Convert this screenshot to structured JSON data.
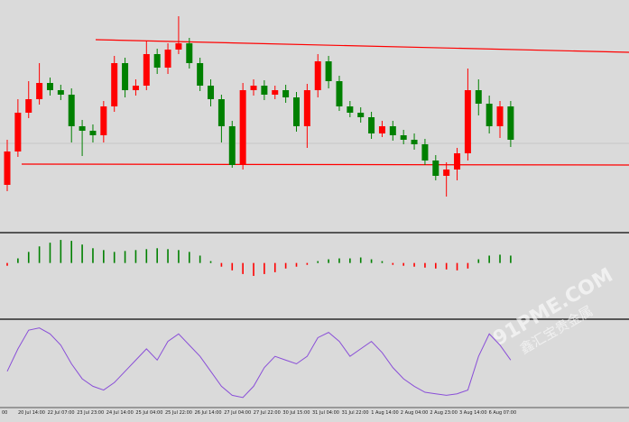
{
  "chart_data": [
    {
      "type": "candlestick",
      "up_color": "#ff0000",
      "down_color": "#008000",
      "ylim": [
        0,
        258
      ],
      "open": [
        53,
        90,
        133,
        148,
        166,
        158,
        153,
        118,
        113,
        108,
        140,
        188,
        158,
        163,
        198,
        183,
        203,
        210,
        188,
        163,
        148,
        118,
        75,
        158,
        163,
        153,
        158,
        150,
        118,
        158,
        190,
        168,
        140,
        133,
        128,
        110,
        118,
        108,
        103,
        98,
        80,
        63,
        70,
        88,
        158,
        143,
        118,
        140
      ],
      "high": [
        103,
        148,
        168,
        188,
        172,
        164,
        160,
        125,
        120,
        146,
        196,
        194,
        170,
        213,
        204,
        210,
        240,
        216,
        194,
        170,
        153,
        124,
        166,
        170,
        169,
        163,
        164,
        156,
        165,
        198,
        196,
        174,
        146,
        139,
        134,
        124,
        124,
        114,
        110,
        104,
        86,
        78,
        94,
        182,
        170,
        152,
        146,
        146
      ],
      "low": [
        46,
        84,
        127,
        142,
        152,
        147,
        100,
        85,
        100,
        100,
        134,
        150,
        152,
        158,
        176,
        176,
        198,
        182,
        157,
        140,
        100,
        72,
        70,
        152,
        147,
        148,
        144,
        112,
        94,
        150,
        160,
        135,
        128,
        122,
        104,
        106,
        102,
        98,
        92,
        75,
        58,
        40,
        58,
        80,
        130,
        110,
        105,
        95
      ],
      "close": [
        90,
        133,
        148,
        166,
        158,
        153,
        118,
        113,
        108,
        140,
        188,
        158,
        163,
        198,
        183,
        203,
        210,
        188,
        163,
        148,
        118,
        75,
        158,
        163,
        153,
        158,
        150,
        118,
        158,
        190,
        168,
        140,
        133,
        128,
        110,
        118,
        108,
        103,
        98,
        80,
        63,
        70,
        88,
        158,
        143,
        118,
        140,
        103
      ]
    },
    {
      "type": "bar",
      "pos_color": "#008000",
      "neg_color": "#ff0000",
      "ylim": [
        -60,
        29
      ],
      "values": [
        -3,
        5,
        12,
        18,
        22,
        25,
        24,
        20,
        16,
        14,
        12,
        13,
        14,
        15,
        16,
        15,
        14,
        12,
        8,
        2,
        -4,
        -8,
        -12,
        -14,
        -12,
        -10,
        -6,
        -4,
        -2,
        2,
        4,
        5,
        5,
        6,
        4,
        2,
        -2,
        -3,
        -4,
        -5,
        -6,
        -7,
        -8,
        -6,
        4,
        8,
        9,
        8
      ]
    },
    {
      "type": "line",
      "color": "#8a4fd8",
      "ylim": [
        0,
        100
      ],
      "values": [
        40,
        70,
        95,
        98,
        90,
        75,
        50,
        30,
        20,
        15,
        25,
        40,
        55,
        70,
        55,
        80,
        90,
        75,
        60,
        40,
        20,
        8,
        5,
        20,
        45,
        60,
        55,
        50,
        60,
        85,
        92,
        80,
        60,
        70,
        80,
        65,
        45,
        30,
        20,
        12,
        10,
        8,
        10,
        15,
        60,
        90,
        75,
        55
      ]
    }
  ],
  "x_axis": {
    "labels": [
      "00",
      "20 Jul 14:00",
      "22 Jul 07:00",
      "23 Jul 23:00",
      "24 Jul 14:00",
      "25 Jul 04:00",
      "25 Jul 22:00",
      "26 Jul 14:00",
      "27 Jul 04:00",
      "27 Jul 22:00",
      "30 Jul 15:00",
      "31 Jul 04:00",
      "31 Jul 22:00",
      "1 Aug 14:00",
      "2 Aug 04:00",
      "2 Aug 23:00",
      "3 Aug 14:00",
      "6 Aug 07:00"
    ]
  },
  "watermark": {
    "brand": "91PME.COM",
    "subtitle": "鑫汇宝贵金属"
  }
}
